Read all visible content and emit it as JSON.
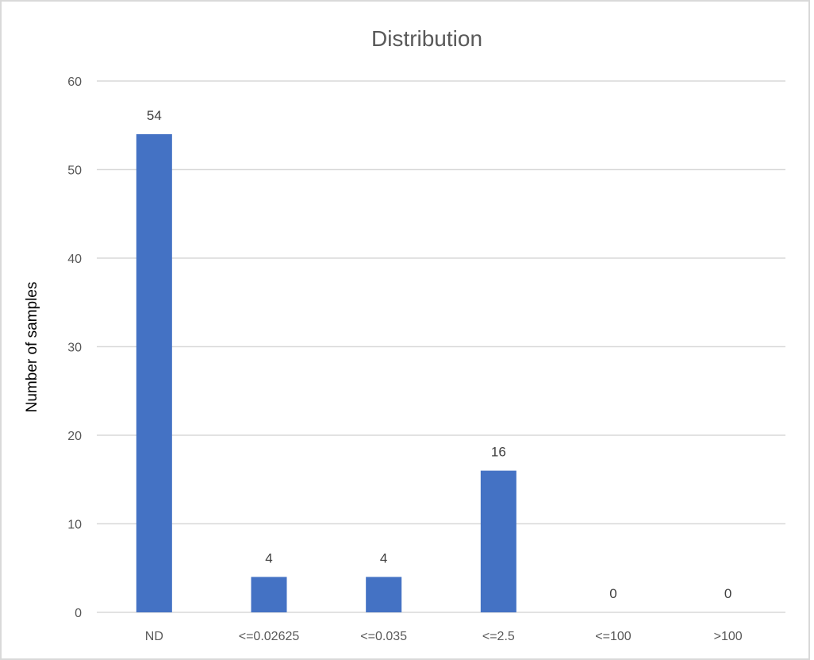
{
  "chart_data": {
    "type": "bar",
    "title": "Distribution",
    "xlabel": "",
    "ylabel": "Number of samples",
    "categories": [
      "ND",
      "<=0.02625",
      "<=0.035",
      "<=2.5",
      "<=100",
      ">100"
    ],
    "values": [
      54,
      4,
      4,
      16,
      0,
      0
    ],
    "ylim": [
      0,
      60
    ],
    "yticks": [
      "0",
      "10",
      "20",
      "30",
      "40",
      "50",
      "60"
    ],
    "data_labels": [
      "54",
      "4",
      "4",
      "16",
      "0",
      "0"
    ],
    "grid": true,
    "legend": "none",
    "colors": {
      "bar": "#4472C4",
      "grid": "#D9D9D9",
      "frame": "#D9D9D9"
    }
  }
}
